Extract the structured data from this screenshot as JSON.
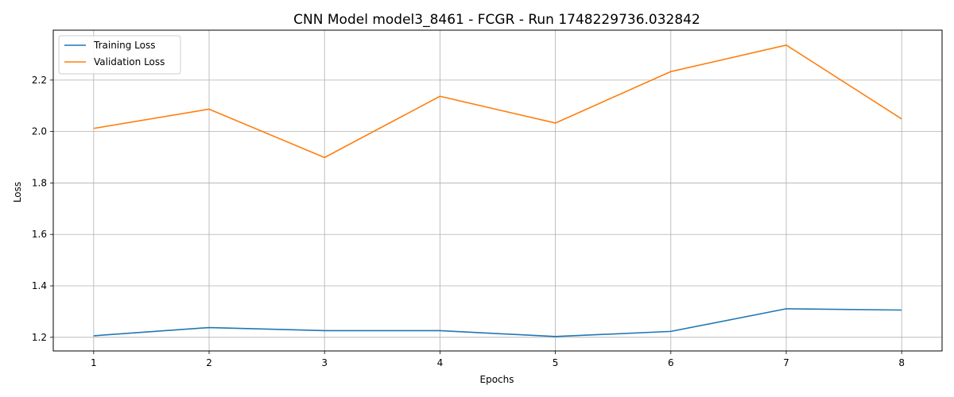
{
  "chart_data": {
    "type": "line",
    "title": "CNN Model model3_8461 - FCGR - Run 1748229736.032842",
    "xlabel": "Epochs",
    "ylabel": "Loss",
    "x": [
      1,
      2,
      3,
      4,
      5,
      6,
      7,
      8
    ],
    "xlim": [
      0.65,
      8.35
    ],
    "ylim": [
      1.147,
      2.394
    ],
    "yticks": [
      1.2,
      1.4,
      1.6,
      1.8,
      2.0,
      2.2
    ],
    "ytick_labels": [
      "1.2",
      "1.4",
      "1.6",
      "1.8",
      "2.0",
      "2.2"
    ],
    "xtick_labels": [
      "1",
      "2",
      "3",
      "4",
      "5",
      "6",
      "7",
      "8"
    ],
    "grid": true,
    "legend_position": "top-left",
    "series": [
      {
        "name": "Training Loss",
        "color": "#1f77b4",
        "values": [
          1.206,
          1.238,
          1.226,
          1.226,
          1.203,
          1.223,
          1.311,
          1.306
        ]
      },
      {
        "name": "Validation Loss",
        "color": "#ff7f0e",
        "values": [
          2.012,
          2.087,
          1.899,
          2.137,
          2.033,
          2.233,
          2.336,
          2.049
        ]
      }
    ]
  }
}
